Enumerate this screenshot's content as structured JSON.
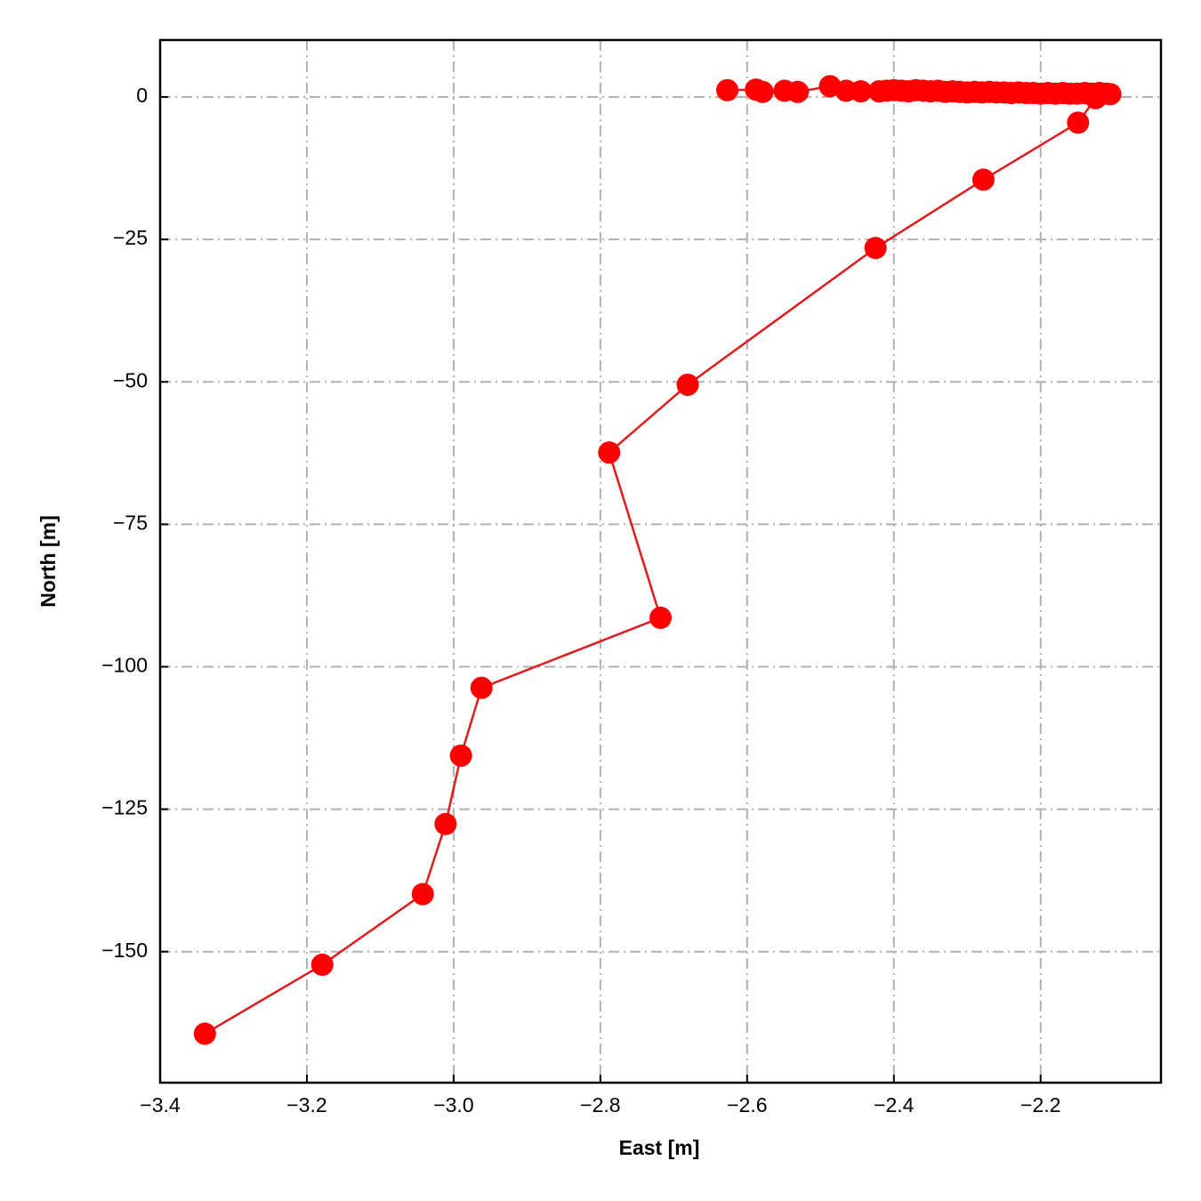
{
  "chart_data": {
    "type": "line",
    "xlabel": "East [m]",
    "ylabel": "North [m]",
    "x": [
      -2.627,
      -2.588,
      -2.579,
      -2.549,
      -2.531,
      -2.487,
      -2.465,
      -2.445,
      -2.42,
      -2.41,
      -2.4,
      -2.39,
      -2.38,
      -2.37,
      -2.36,
      -2.35,
      -2.34,
      -2.33,
      -2.32,
      -2.31,
      -2.3,
      -2.29,
      -2.28,
      -2.27,
      -2.26,
      -2.25,
      -2.24,
      -2.23,
      -2.22,
      -2.21,
      -2.2,
      -2.19,
      -2.18,
      -2.17,
      -2.16,
      -2.15,
      -2.14,
      -2.13,
      -2.12,
      -2.11,
      -2.105,
      -2.125,
      -2.149,
      -2.278,
      -2.425,
      -2.681,
      -2.788,
      -2.718,
      -2.962,
      -2.99,
      -3.011,
      -3.042,
      -3.179,
      -3.339
    ],
    "series": [
      {
        "color": "#ff0000",
        "line_color": "#e31a1c",
        "values": [
          1.2,
          1.3,
          0.9,
          1.1,
          0.9,
          1.9,
          1.1,
          1.0,
          1.0,
          1.1,
          1.2,
          1.1,
          1.0,
          1.2,
          1.1,
          1.0,
          1.1,
          0.9,
          1.0,
          0.9,
          0.8,
          0.9,
          0.8,
          0.9,
          0.8,
          0.8,
          0.7,
          0.8,
          0.7,
          0.7,
          0.6,
          0.7,
          0.6,
          0.7,
          0.6,
          0.6,
          0.7,
          0.6,
          0.7,
          0.6,
          0.5,
          -0.2,
          -4.5,
          -14.5,
          -26.5,
          -50.5,
          -62.4,
          -91.4,
          -103.7,
          -115.6,
          -127.6,
          -139.9,
          -152.3,
          -164.4
        ]
      }
    ],
    "xlim": [
      -3.4,
      -2.036
    ],
    "ylim": [
      -173,
      10
    ],
    "xticks": [
      {
        "value": -3.4,
        "label": "−3.4"
      },
      {
        "value": -3.2,
        "label": "−3.2"
      },
      {
        "value": -3.0,
        "label": "−3.0"
      },
      {
        "value": -2.8,
        "label": "−2.8"
      },
      {
        "value": -2.6,
        "label": "−2.6"
      },
      {
        "value": -2.4,
        "label": "−2.4"
      },
      {
        "value": -2.2,
        "label": "−2.2"
      }
    ],
    "yticks": [
      0,
      {
        "value": -25,
        "label": "−25"
      },
      {
        "value": -50,
        "label": "−50"
      },
      {
        "value": -75,
        "label": "−75"
      },
      {
        "value": -100,
        "label": "−100"
      },
      {
        "value": -125,
        "label": "−125"
      },
      {
        "value": -150,
        "label": "−150"
      }
    ],
    "grid": true
  }
}
